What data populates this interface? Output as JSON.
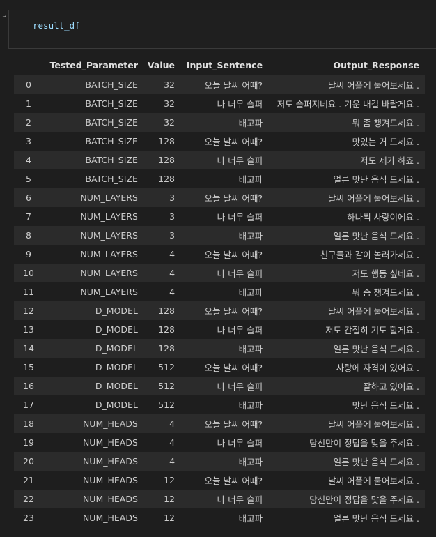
{
  "cell": {
    "code": "result_df"
  },
  "table": {
    "columns": [
      "",
      "Tested_Parameter",
      "Value",
      "Input_Sentence",
      "Output_Response"
    ],
    "rows": [
      [
        "0",
        "BATCH_SIZE",
        "32",
        "오늘 날씨 어때?",
        "날씨 어플에 물어보세요 ."
      ],
      [
        "1",
        "BATCH_SIZE",
        "32",
        "나 너무 슬퍼",
        "저도 슬퍼지네요 . 기운 내길 바랄게요 ."
      ],
      [
        "2",
        "BATCH_SIZE",
        "32",
        "배고파",
        "뭐 좀 챙겨드세요 ."
      ],
      [
        "3",
        "BATCH_SIZE",
        "128",
        "오늘 날씨 어때?",
        "맛있는 거 드세요 ."
      ],
      [
        "4",
        "BATCH_SIZE",
        "128",
        "나 너무 슬퍼",
        "저도 제가 하죠 ."
      ],
      [
        "5",
        "BATCH_SIZE",
        "128",
        "배고파",
        "얼른 맛난 음식 드세요 ."
      ],
      [
        "6",
        "NUM_LAYERS",
        "3",
        "오늘 날씨 어때?",
        "날씨 어플에 물어보세요 ."
      ],
      [
        "7",
        "NUM_LAYERS",
        "3",
        "나 너무 슬퍼",
        "하나씩 사랑이에요 ."
      ],
      [
        "8",
        "NUM_LAYERS",
        "3",
        "배고파",
        "얼른 맛난 음식 드세요 ."
      ],
      [
        "9",
        "NUM_LAYERS",
        "4",
        "오늘 날씨 어때?",
        "친구들과 같이 놀러가세요 ."
      ],
      [
        "10",
        "NUM_LAYERS",
        "4",
        "나 너무 슬퍼",
        "저도 행동 싶네요 ."
      ],
      [
        "11",
        "NUM_LAYERS",
        "4",
        "배고파",
        "뭐 좀 챙겨드세요 ."
      ],
      [
        "12",
        "D_MODEL",
        "128",
        "오늘 날씨 어때?",
        "날씨 어플에 물어보세요 ."
      ],
      [
        "13",
        "D_MODEL",
        "128",
        "나 너무 슬퍼",
        "저도 간절히 기도 할게요 ."
      ],
      [
        "14",
        "D_MODEL",
        "128",
        "배고파",
        "얼른 맛난 음식 드세요 ."
      ],
      [
        "15",
        "D_MODEL",
        "512",
        "오늘 날씨 어때?",
        "사랑에 자격이 있어요 ."
      ],
      [
        "16",
        "D_MODEL",
        "512",
        "나 너무 슬퍼",
        "잘하고 있어요 ."
      ],
      [
        "17",
        "D_MODEL",
        "512",
        "배고파",
        "맛난 음식 드세요 ."
      ],
      [
        "18",
        "NUM_HEADS",
        "4",
        "오늘 날씨 어때?",
        "날씨 어플에 물어보세요 ."
      ],
      [
        "19",
        "NUM_HEADS",
        "4",
        "나 너무 슬퍼",
        "당신만이 정답을 맞을 주세요 ."
      ],
      [
        "20",
        "NUM_HEADS",
        "4",
        "배고파",
        "얼른 맛난 음식 드세요 ."
      ],
      [
        "21",
        "NUM_HEADS",
        "12",
        "오늘 날씨 어때?",
        "날씨 어플에 물어보세요 ."
      ],
      [
        "22",
        "NUM_HEADS",
        "12",
        "나 너무 슬퍼",
        "당신만이 정답을 맞을 주세요 ."
      ],
      [
        "23",
        "NUM_HEADS",
        "12",
        "배고파",
        "얼른 맛난 음식 드세요 ."
      ]
    ]
  },
  "icons": {
    "gutter": "chevron-down-icon"
  }
}
